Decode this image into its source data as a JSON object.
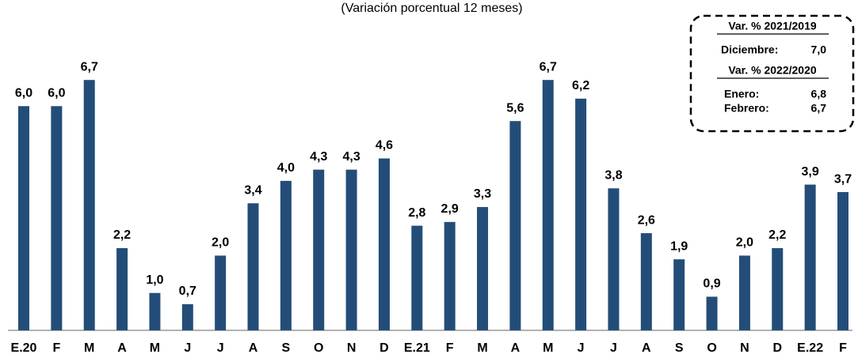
{
  "chart_data": {
    "type": "bar",
    "subtitle": "(Variación porcentual 12 meses)",
    "categories": [
      "E.20",
      "F",
      "M",
      "A",
      "M",
      "J",
      "J",
      "A",
      "S",
      "O",
      "N",
      "D",
      "E.21",
      "F",
      "M",
      "A",
      "M",
      "J",
      "J",
      "A",
      "S",
      "O",
      "N",
      "D",
      "E.22",
      "F"
    ],
    "values": [
      6.0,
      6.0,
      6.7,
      2.2,
      1.0,
      0.7,
      2.0,
      3.4,
      4.0,
      4.3,
      4.3,
      4.6,
      2.8,
      2.9,
      3.3,
      5.6,
      6.7,
      6.2,
      3.8,
      2.6,
      1.9,
      0.9,
      2.0,
      2.2,
      3.9,
      3.7
    ],
    "value_labels": [
      "6,0",
      "6,0",
      "6,7",
      "2,2",
      "1,0",
      "0,7",
      "2,0",
      "3,4",
      "4,0",
      "4,3",
      "4,3",
      "4,6",
      "2,8",
      "2,9",
      "3,3",
      "5,6",
      "6,7",
      "6,2",
      "3,8",
      "2,6",
      "1,9",
      "0,9",
      "2,0",
      "2,2",
      "3,9",
      "3,7"
    ],
    "color": "#234d78",
    "ylim": [
      0,
      7
    ],
    "annotation": {
      "groups": [
        {
          "heading": "Var. % 2021/2019",
          "rows": [
            [
              "Diciembre:",
              "7,0"
            ]
          ]
        },
        {
          "heading": "Var. % 2022/2020",
          "rows": [
            [
              "Enero:",
              "6,8"
            ],
            [
              "Febrero:",
              "6,7"
            ]
          ]
        }
      ]
    }
  }
}
